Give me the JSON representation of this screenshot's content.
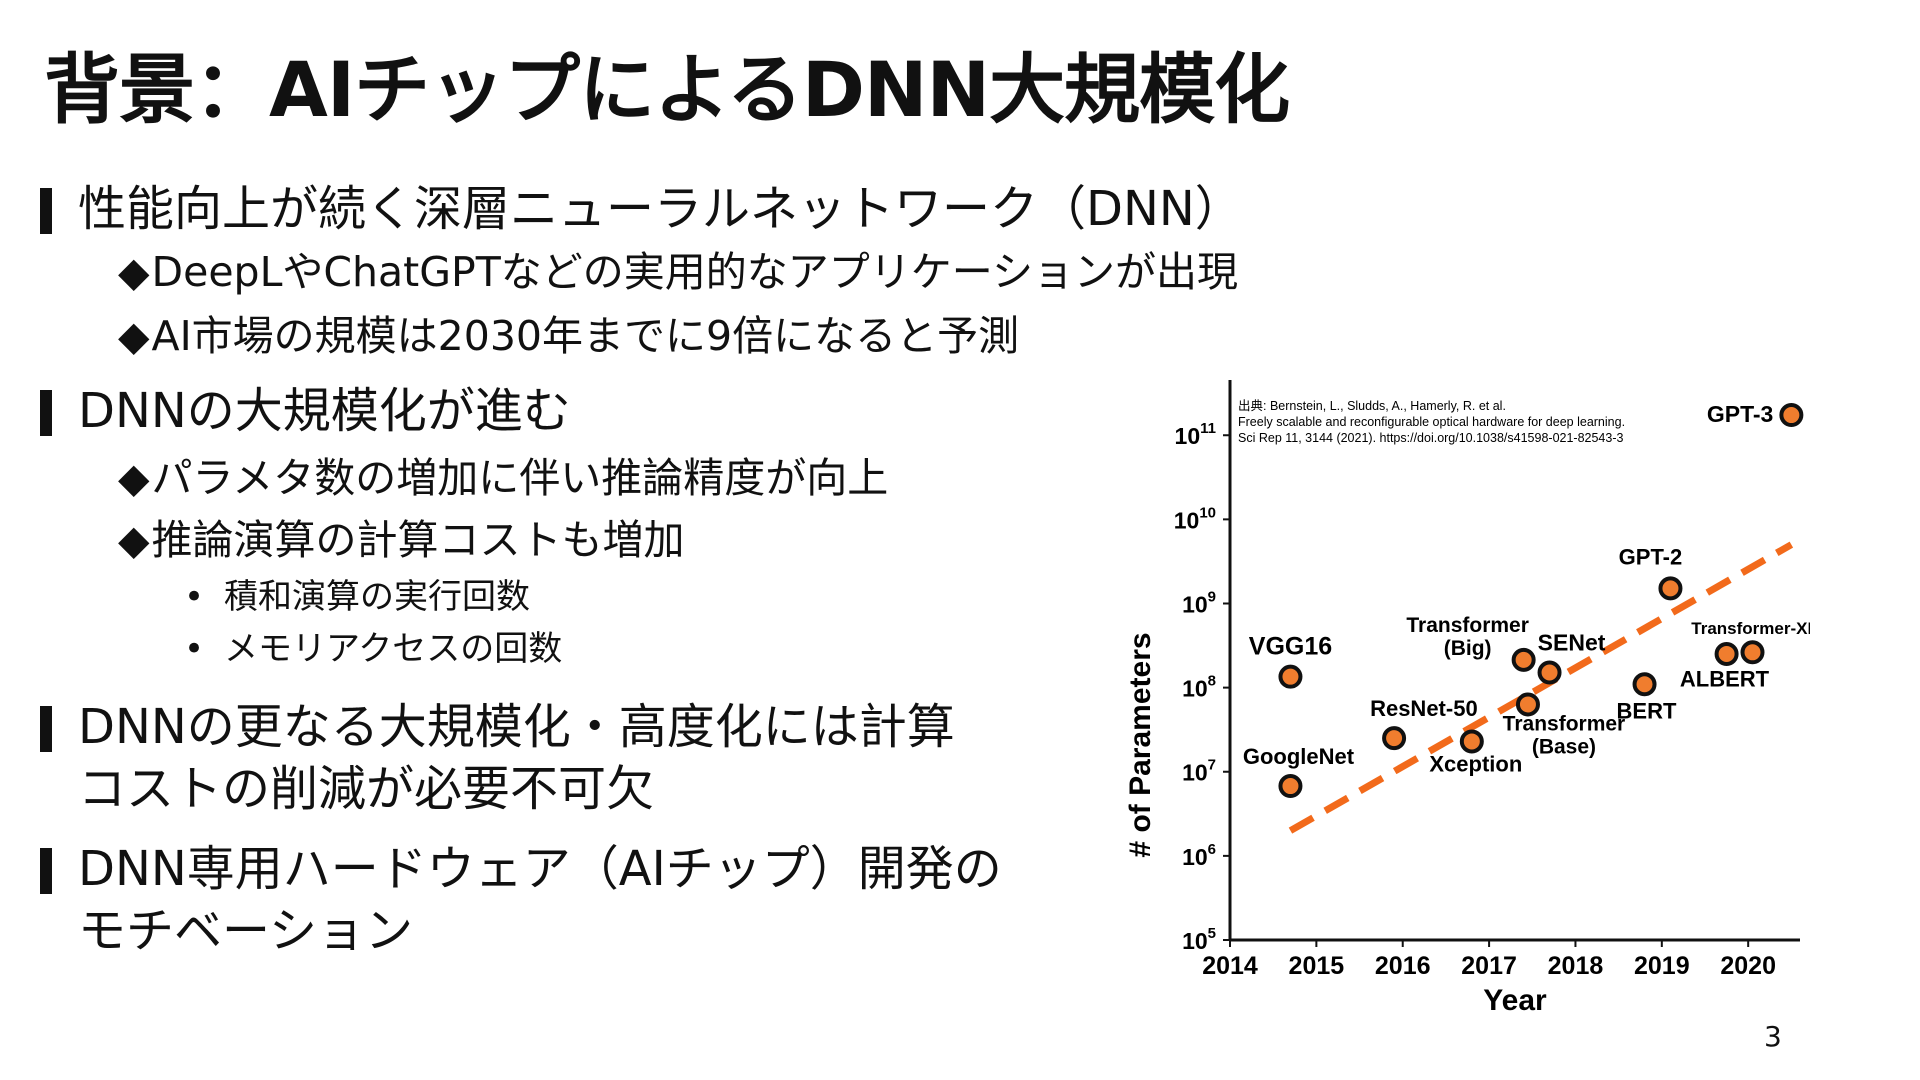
{
  "slide": {
    "title": "背景：AIチップによるDNN大規模化",
    "page_number": "3"
  },
  "bullets": [
    {
      "text": "性能向上が続く深層ニューラルネットワーク（DNN）"
    },
    {
      "text": "DNNの大規模化が進む"
    },
    {
      "text": "DNNの更なる大規模化・高度化には計算",
      "text2": "コストの削減が必要不可欠"
    },
    {
      "text": "DNN専用ハードウェア（AIチップ）開発の",
      "text2": "モチベーション"
    }
  ],
  "subs": [
    {
      "marker": "◆",
      "text": "DeepLやChatGPTなどの実用的なアプリケーションが出現"
    },
    {
      "marker": "◆",
      "text": "AI市場の規模は2030年までに9倍になると予測"
    },
    {
      "marker": "◆",
      "text": "パラメタ数の増加に伴い推論精度が向上"
    },
    {
      "marker": "◆",
      "text": "推論演算の計算コストも増加"
    }
  ],
  "subsubs": [
    {
      "marker": "•",
      "text": "積和演算の実行回数"
    },
    {
      "marker": "•",
      "text": "メモリアクセスの回数"
    }
  ],
  "chart_data": {
    "type": "scatter",
    "xlabel": "Year",
    "ylabel": "# of Parameters",
    "xlim": [
      2014,
      2020.6
    ],
    "y_log10_lim": [
      5,
      11.3
    ],
    "x_ticks": [
      "2014",
      "2015",
      "2016",
      "2017",
      "2018",
      "2019",
      "2020"
    ],
    "y_ticks": [
      {
        "base": "10",
        "exp": "5"
      },
      {
        "base": "10",
        "exp": "6"
      },
      {
        "base": "10",
        "exp": "7"
      },
      {
        "base": "10",
        "exp": "8"
      },
      {
        "base": "10",
        "exp": "9"
      },
      {
        "base": "10",
        "exp": "10"
      },
      {
        "base": "10",
        "exp": "11"
      }
    ],
    "citation": [
      "出典: Bernstein, L., Sludds, A., Hamerly, R. et al.",
      "Freely scalable and reconfigurable optical hardware for deep learning.",
      "Sci Rep 11, 3144 (2021). https://doi.org/10.1038/s41598-021-82543-3"
    ],
    "points": [
      {
        "label": "VGG16",
        "x": 2014.7,
        "y_log10": 8.13
      },
      {
        "label": "GoogleNet",
        "x": 2014.7,
        "y_log10": 6.83
      },
      {
        "label": "ResNet-50",
        "x": 2015.9,
        "y_log10": 7.4
      },
      {
        "label": "Xception",
        "x": 2016.8,
        "y_log10": 7.36
      },
      {
        "label": "Transformer (Big)",
        "x": 2017.4,
        "y_log10": 8.33
      },
      {
        "label": "SENet",
        "x": 2017.7,
        "y_log10": 8.18
      },
      {
        "label": "Transformer (Base)",
        "x": 2017.45,
        "y_log10": 7.8
      },
      {
        "label": "BERT",
        "x": 2018.8,
        "y_log10": 8.04
      },
      {
        "label": "GPT-2",
        "x": 2019.1,
        "y_log10": 9.18
      },
      {
        "label": "Transformer-XL",
        "x": 2019.75,
        "y_log10": 8.4
      },
      {
        "label": "ALBERT",
        "x": 2020.05,
        "y_log10": 8.42
      },
      {
        "label": "GPT-3",
        "x": 2020.5,
        "y_log10": 11.24
      }
    ],
    "trend": {
      "x": [
        2014.7,
        2020.5
      ],
      "y_log10": [
        6.3,
        9.7
      ]
    },
    "colors": {
      "point_fill": "#f07d2e",
      "point_stroke": "#111111",
      "trend": "#f26a1b",
      "axis": "#111111"
    }
  }
}
